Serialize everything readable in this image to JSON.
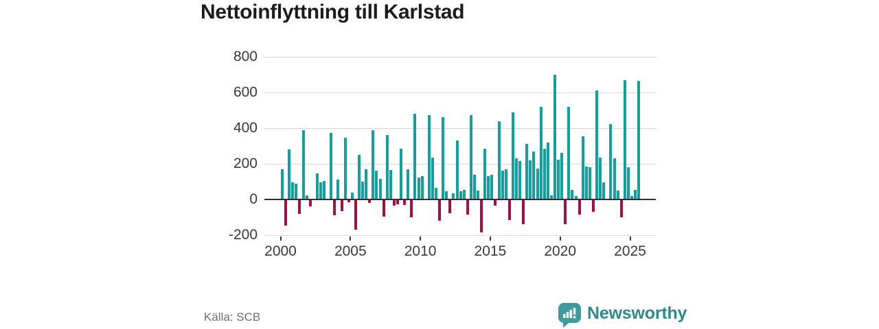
{
  "header": {
    "title": "Nettoinflyttning till Karlstad"
  },
  "footer": {
    "source": "Källa: SCB",
    "brand": "Newsworthy"
  },
  "colors": {
    "positive_bar": "#11a09e",
    "negative_bar": "#a40e43",
    "title_text": "#1c1c1c",
    "axis_text": "#3a3a3a",
    "gridline": "#d8d8d8",
    "zero_line": "#2f2f2f",
    "source_text": "#6b6e74",
    "brand_teal": "#2e898d",
    "logo_mark": "#3f9a99"
  },
  "chart_data": {
    "type": "bar",
    "title": "Nettoinflyttning till Karlstad",
    "frequency": "quarterly",
    "x_start": "2000-Q1",
    "x_end": "2025-Q3",
    "ylim": [
      -200,
      800
    ],
    "yticks": [
      800,
      600,
      400,
      200,
      0,
      -200
    ],
    "ytick_labels": [
      "800",
      "600",
      "400",
      "200",
      "0",
      "-200"
    ],
    "xtick_years": [
      2000,
      2005,
      2010,
      2015,
      2020,
      2025
    ],
    "grid": true,
    "legend": false,
    "positive_color": "#11a09e",
    "negative_color": "#a40e43",
    "years": [
      {
        "year": 2000,
        "values": [
          170,
          -145,
          280,
          95
        ]
      },
      {
        "year": 2001,
        "values": [
          90,
          -80,
          390,
          25
        ]
      },
      {
        "year": 2002,
        "values": [
          -40,
          0,
          145,
          95
        ]
      },
      {
        "year": 2003,
        "values": [
          105,
          0,
          375,
          -90
        ]
      },
      {
        "year": 2004,
        "values": [
          110,
          -65,
          345,
          -15
        ]
      },
      {
        "year": 2005,
        "values": [
          40,
          -170,
          250,
          100
        ]
      },
      {
        "year": 2006,
        "values": [
          170,
          -20,
          390,
          160
        ]
      },
      {
        "year": 2007,
        "values": [
          115,
          -95,
          360,
          165
        ]
      },
      {
        "year": 2008,
        "values": [
          -35,
          -25,
          285,
          -30
        ]
      },
      {
        "year": 2009,
        "values": [
          170,
          -100,
          480,
          125
        ]
      },
      {
        "year": 2010,
        "values": [
          130,
          5,
          475,
          235
        ]
      },
      {
        "year": 2011,
        "values": [
          65,
          -120,
          460,
          45
        ]
      },
      {
        "year": 2012,
        "values": [
          -75,
          35,
          330,
          45
        ]
      },
      {
        "year": 2013,
        "values": [
          55,
          -85,
          475,
          140
        ]
      },
      {
        "year": 2014,
        "values": [
          50,
          -185,
          285,
          130
        ]
      },
      {
        "year": 2015,
        "values": [
          140,
          -35,
          440,
          160
        ]
      },
      {
        "year": 2016,
        "values": [
          170,
          -115,
          490,
          230
        ]
      },
      {
        "year": 2017,
        "values": [
          215,
          -140,
          310,
          220
        ]
      },
      {
        "year": 2018,
        "values": [
          270,
          175,
          520,
          285
        ]
      },
      {
        "year": 2019,
        "values": [
          320,
          25,
          700,
          225
        ]
      },
      {
        "year": 2020,
        "values": [
          260,
          -140,
          520,
          55
        ]
      },
      {
        "year": 2021,
        "values": [
          20,
          -85,
          355,
          185
        ]
      },
      {
        "year": 2022,
        "values": [
          180,
          -70,
          610,
          235
        ]
      },
      {
        "year": 2023,
        "values": [
          95,
          0,
          425,
          230
        ]
      },
      {
        "year": 2024,
        "values": [
          50,
          -100,
          670,
          180
        ]
      },
      {
        "year": 2025,
        "values": [
          20,
          55,
          665
        ]
      }
    ]
  }
}
